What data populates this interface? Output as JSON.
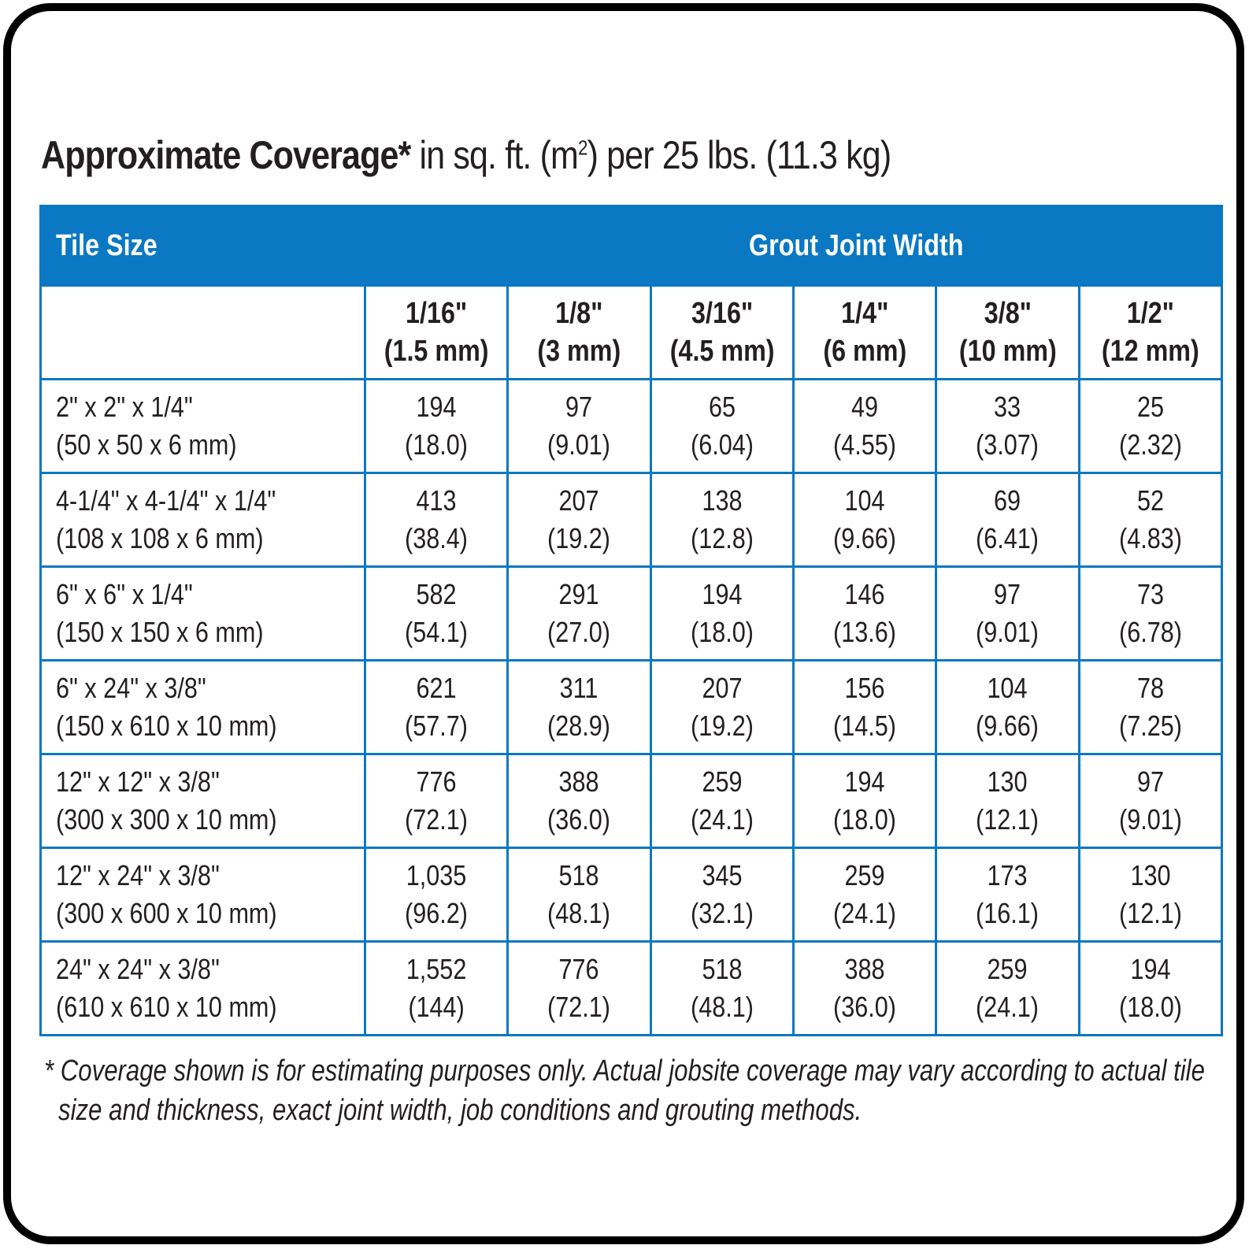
{
  "title": {
    "bold": "Approximate Coverage*",
    "rest_pre": " in sq. ft. (m",
    "sup": "2",
    "rest_post": ") per 25 lbs. (11.3 kg)"
  },
  "colors": {
    "header_blue": "#0a78c2",
    "text": "#231f20"
  },
  "table": {
    "tile_size_label": "Tile Size",
    "grout_label": "Grout Joint Width",
    "columns": [
      {
        "in": "1/16\"",
        "mm": "(1.5 mm)"
      },
      {
        "in": "1/8\"",
        "mm": "(3 mm)"
      },
      {
        "in": "3/16\"",
        "mm": "(4.5 mm)"
      },
      {
        "in": "1/4\"",
        "mm": "(6 mm)"
      },
      {
        "in": "3/8\"",
        "mm": "(10 mm)"
      },
      {
        "in": "1/2\"",
        "mm": "(12 mm)"
      }
    ],
    "rows": [
      {
        "size": "2\" x 2\" x 1/4\"",
        "size_mm": "(50 x 50 x 6 mm)",
        "values": [
          [
            "194",
            "(18.0)"
          ],
          [
            "97",
            "(9.01)"
          ],
          [
            "65",
            "(6.04)"
          ],
          [
            "49",
            "(4.55)"
          ],
          [
            "33",
            "(3.07)"
          ],
          [
            "25",
            "(2.32)"
          ]
        ]
      },
      {
        "size": "4-1/4\" x 4-1/4\" x 1/4\"",
        "size_mm": "(108 x 108 x 6 mm)",
        "values": [
          [
            "413",
            "(38.4)"
          ],
          [
            "207",
            "(19.2)"
          ],
          [
            "138",
            "(12.8)"
          ],
          [
            "104",
            "(9.66)"
          ],
          [
            "69",
            "(6.41)"
          ],
          [
            "52",
            "(4.83)"
          ]
        ]
      },
      {
        "size": "6\" x 6\" x 1/4\"",
        "size_mm": "(150 x 150 x 6 mm)",
        "values": [
          [
            "582",
            "(54.1)"
          ],
          [
            "291",
            "(27.0)"
          ],
          [
            "194",
            "(18.0)"
          ],
          [
            "146",
            "(13.6)"
          ],
          [
            "97",
            "(9.01)"
          ],
          [
            "73",
            "(6.78)"
          ]
        ]
      },
      {
        "size": "6\" x 24\" x 3/8\"",
        "size_mm": "(150 x 610 x 10 mm)",
        "values": [
          [
            "621",
            "(57.7)"
          ],
          [
            "311",
            "(28.9)"
          ],
          [
            "207",
            "(19.2)"
          ],
          [
            "156",
            "(14.5)"
          ],
          [
            "104",
            "(9.66)"
          ],
          [
            "78",
            "(7.25)"
          ]
        ]
      },
      {
        "size": "12\" x 12\" x 3/8\"",
        "size_mm": "(300 x 300 x 10 mm)",
        "values": [
          [
            "776",
            "(72.1)"
          ],
          [
            "388",
            "(36.0)"
          ],
          [
            "259",
            "(24.1)"
          ],
          [
            "194",
            "(18.0)"
          ],
          [
            "130",
            "(12.1)"
          ],
          [
            "97",
            "(9.01)"
          ]
        ]
      },
      {
        "size": "12\" x 24\" x 3/8\"",
        "size_mm": "(300 x 600 x 10 mm)",
        "values": [
          [
            "1,035",
            "(96.2)"
          ],
          [
            "518",
            "(48.1)"
          ],
          [
            "345",
            "(32.1)"
          ],
          [
            "259",
            "(24.1)"
          ],
          [
            "173",
            "(16.1)"
          ],
          [
            "130",
            "(12.1)"
          ]
        ]
      },
      {
        "size": "24\" x 24\" x 3/8\"",
        "size_mm": "(610 x 610 x 10 mm)",
        "values": [
          [
            "1,552",
            "(144)"
          ],
          [
            "776",
            "(72.1)"
          ],
          [
            "518",
            "(48.1)"
          ],
          [
            "388",
            "(36.0)"
          ],
          [
            "259",
            "(24.1)"
          ],
          [
            "194",
            "(18.0)"
          ]
        ]
      }
    ]
  },
  "footnote": {
    "line1": "* Coverage shown is for estimating purposes only. Actual jobsite coverage may vary according to actual tile",
    "line2": "size and thickness, exact joint width, job conditions and grouting methods."
  }
}
